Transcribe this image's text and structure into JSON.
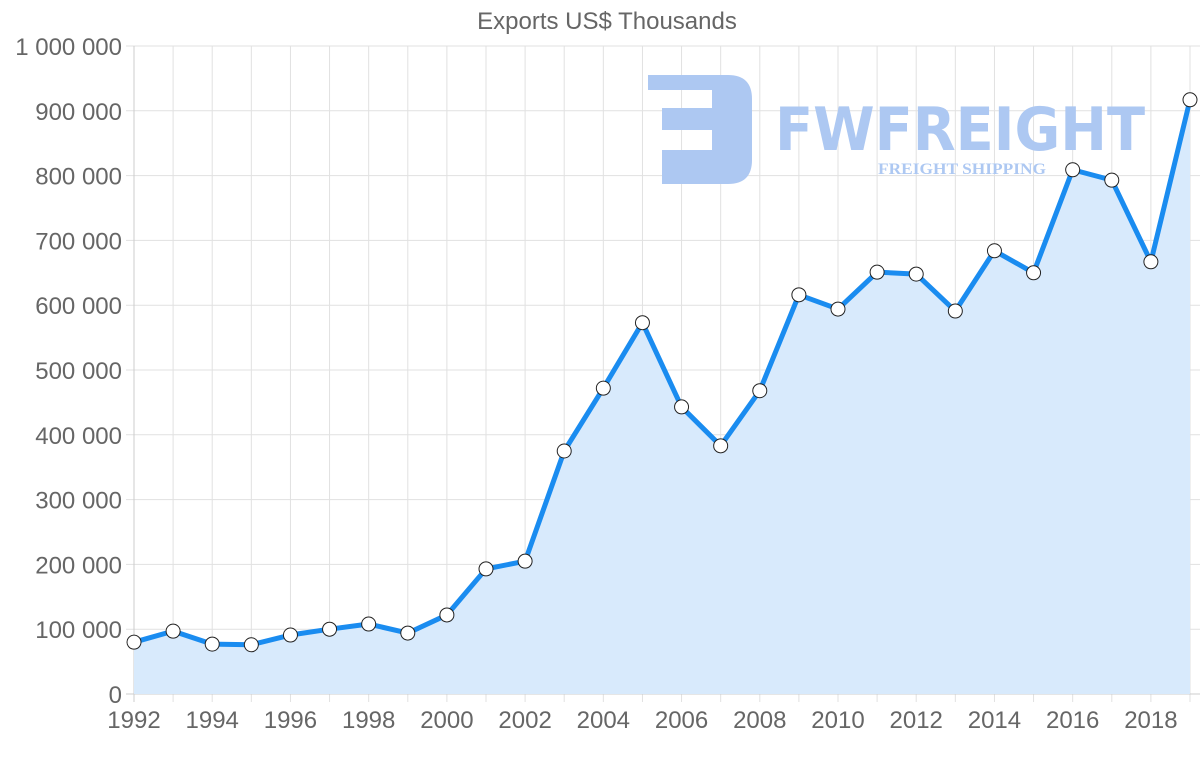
{
  "chart_data": {
    "type": "area",
    "title": "Exports US$ Thousands",
    "xlabel": "",
    "ylabel": "",
    "ylim": [
      0,
      1000000
    ],
    "yticks": [
      "0",
      "100 000",
      "200 000",
      "300 000",
      "400 000",
      "500 000",
      "600 000",
      "700 000",
      "800 000",
      "900 000",
      "1 000 000"
    ],
    "xticks": [
      "1992",
      "1994",
      "1996",
      "1998",
      "2000",
      "2002",
      "2004",
      "2006",
      "2008",
      "2010",
      "2012",
      "2014",
      "2016",
      "2018"
    ],
    "grid": true,
    "legend": null,
    "x": [
      1992,
      1993,
      1994,
      1995,
      1996,
      1997,
      1998,
      1999,
      2000,
      2001,
      2002,
      2003,
      2004,
      2005,
      2006,
      2007,
      2008,
      2009,
      2010,
      2011,
      2012,
      2013,
      2014,
      2015,
      2016,
      2017,
      2018,
      2019
    ],
    "series": [
      {
        "name": "Exports US$ Thousands",
        "values": [
          80000,
          97000,
          77000,
          76000,
          91000,
          100000,
          108000,
          94000,
          122000,
          193000,
          205000,
          375000,
          472000,
          573000,
          443000,
          383000,
          468000,
          616000,
          594000,
          651000,
          648000,
          591000,
          684000,
          650000,
          809000,
          793000,
          667000,
          917000
        ]
      }
    ]
  },
  "colors": {
    "line": "#1a8cf0",
    "fill": "#d8eafc",
    "marker_fill": "#ffffff",
    "marker_stroke": "#222222",
    "watermark": "#adc8f2"
  },
  "watermark": {
    "brand": "FWFREIGHT",
    "tagline": "FREIGHT SHIPPING"
  }
}
